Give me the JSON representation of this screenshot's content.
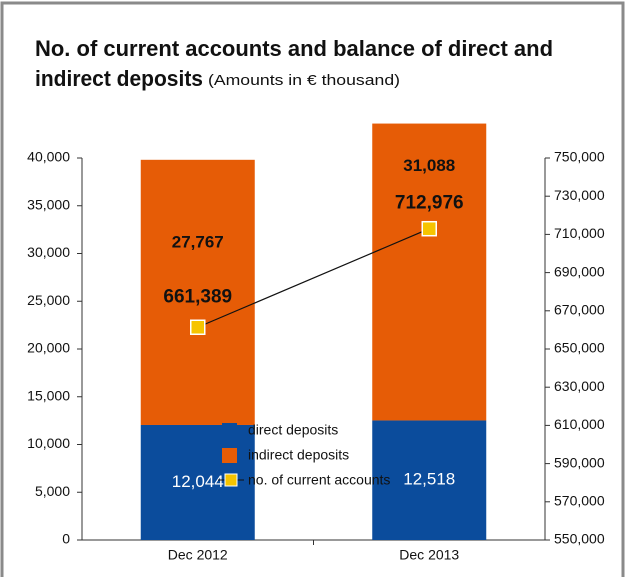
{
  "chart_data": {
    "type": "bar",
    "stacked": true,
    "title": [
      "No. of current accounts and balance of direct and",
      "indirect deposits"
    ],
    "subtitle": "(Amounts in € thousand)",
    "categories": [
      "Dec 2012",
      "Dec 2013"
    ],
    "series": [
      {
        "name": "direct deposits",
        "type": "bar",
        "color": "#0b4c9c",
        "values": [
          12044,
          12518
        ],
        "value_labels": [
          "12,044",
          "12,518"
        ],
        "label_color": "#ffffff"
      },
      {
        "name": "indirect deposits",
        "type": "bar",
        "color": "#e65c06",
        "values": [
          27767,
          31088
        ],
        "value_labels": [
          "27,767",
          "31,088"
        ],
        "label_color": "#111111"
      },
      {
        "name": "no. of current accounts",
        "type": "line",
        "axis": "y2",
        "color": "#f6c400",
        "values": [
          661389,
          712976
        ],
        "value_labels": [
          "661,389",
          "712,976"
        ],
        "label_color": "#111111"
      }
    ],
    "ylim": [
      0,
      40000
    ],
    "yticks": [
      0,
      {
        "value": 5000,
        "label": "5,000"
      },
      {
        "value": 10000,
        "label": "10,000"
      },
      {
        "value": 15000,
        "label": "15,000"
      },
      {
        "value": 20000,
        "label": "20,000"
      },
      {
        "value": 25000,
        "label": "25,000"
      },
      {
        "value": 30000,
        "label": "30,000"
      },
      {
        "value": 35000,
        "label": "35,000"
      },
      {
        "value": 40000,
        "label": "40,000"
      }
    ],
    "y2lim": [
      550000,
      750000
    ],
    "y2ticks": [
      {
        "value": 550000,
        "label": "550,000"
      },
      {
        "value": 570000,
        "label": "570,000"
      },
      {
        "value": 590000,
        "label": "590,000"
      },
      {
        "value": 610000,
        "label": "610,000"
      },
      {
        "value": 630000,
        "label": "630,000"
      },
      {
        "value": 650000,
        "label": "650,000"
      },
      {
        "value": 670000,
        "label": "670,000"
      },
      {
        "value": 690000,
        "label": "690,000"
      },
      {
        "value": 710000,
        "label": "710,000"
      },
      {
        "value": 730000,
        "label": "730,000"
      },
      {
        "value": 750000,
        "label": "750,000"
      }
    ],
    "grid": false
  }
}
